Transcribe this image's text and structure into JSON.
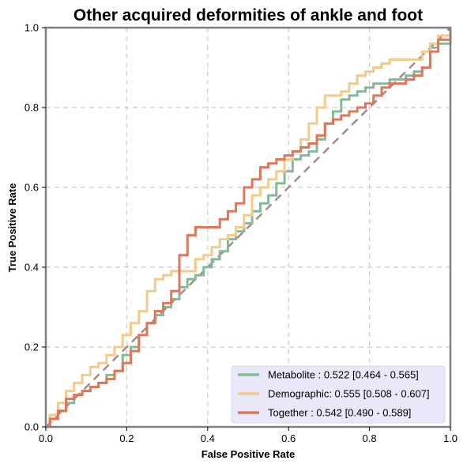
{
  "chart_data": {
    "type": "line",
    "title": "Other acquired deformities of ankle and foot",
    "xlabel": "False Positive Rate",
    "ylabel": "True Positive Rate",
    "xlim": [
      0,
      1
    ],
    "ylim": [
      0,
      1
    ],
    "xticks": [
      "0.0",
      "0.2",
      "0.4",
      "0.6",
      "0.8",
      "1.0"
    ],
    "yticks": [
      "0.0",
      "0.2",
      "0.4",
      "0.6",
      "0.8",
      "1.0"
    ],
    "grid": true,
    "legend_position": "bottom-right",
    "series": [
      {
        "name": "Metabolite",
        "legend_label": "Metabolite     : 0.522 [0.464 - 0.565]",
        "color": "#86b89a",
        "x": [
          0,
          0.01,
          0.03,
          0.05,
          0.07,
          0.09,
          0.11,
          0.13,
          0.15,
          0.17,
          0.19,
          0.21,
          0.23,
          0.25,
          0.27,
          0.29,
          0.31,
          0.33,
          0.35,
          0.37,
          0.39,
          0.41,
          0.43,
          0.45,
          0.47,
          0.49,
          0.51,
          0.53,
          0.55,
          0.57,
          0.59,
          0.61,
          0.63,
          0.65,
          0.67,
          0.69,
          0.71,
          0.73,
          0.75,
          0.77,
          0.79,
          0.81,
          0.83,
          0.85,
          0.87,
          0.89,
          0.91,
          0.93,
          0.95,
          0.97,
          1.0
        ],
        "y": [
          0,
          0.02,
          0.04,
          0.06,
          0.08,
          0.09,
          0.1,
          0.11,
          0.13,
          0.14,
          0.18,
          0.2,
          0.23,
          0.26,
          0.28,
          0.3,
          0.32,
          0.35,
          0.37,
          0.38,
          0.4,
          0.42,
          0.44,
          0.47,
          0.49,
          0.51,
          0.54,
          0.56,
          0.58,
          0.61,
          0.64,
          0.67,
          0.68,
          0.69,
          0.72,
          0.76,
          0.79,
          0.82,
          0.83,
          0.84,
          0.85,
          0.86,
          0.86,
          0.87,
          0.87,
          0.88,
          0.89,
          0.9,
          0.95,
          0.96,
          1.0
        ]
      },
      {
        "name": "Demographic",
        "legend_label": "Demographic: 0.555 [0.508 - 0.607]",
        "color": "#f2cb8b",
        "x": [
          0,
          0.01,
          0.03,
          0.05,
          0.07,
          0.09,
          0.11,
          0.13,
          0.15,
          0.17,
          0.19,
          0.21,
          0.23,
          0.25,
          0.27,
          0.29,
          0.31,
          0.33,
          0.35,
          0.37,
          0.39,
          0.41,
          0.43,
          0.45,
          0.47,
          0.49,
          0.51,
          0.53,
          0.55,
          0.57,
          0.59,
          0.61,
          0.63,
          0.65,
          0.67,
          0.69,
          0.71,
          0.73,
          0.75,
          0.77,
          0.79,
          0.81,
          0.83,
          0.85,
          0.87,
          0.89,
          0.91,
          0.93,
          0.95,
          0.97,
          1.0
        ],
        "y": [
          0,
          0.03,
          0.06,
          0.09,
          0.11,
          0.13,
          0.15,
          0.16,
          0.18,
          0.2,
          0.23,
          0.26,
          0.29,
          0.34,
          0.37,
          0.38,
          0.39,
          0.39,
          0.39,
          0.42,
          0.43,
          0.45,
          0.47,
          0.48,
          0.5,
          0.53,
          0.58,
          0.6,
          0.62,
          0.64,
          0.67,
          0.69,
          0.72,
          0.76,
          0.8,
          0.83,
          0.83,
          0.84,
          0.86,
          0.88,
          0.89,
          0.9,
          0.91,
          0.92,
          0.92,
          0.92,
          0.92,
          0.94,
          0.96,
          0.98,
          1.0
        ]
      },
      {
        "name": "Together",
        "legend_label": "Together       : 0.542 [0.490 - 0.589]",
        "color": "#e07558",
        "x": [
          0,
          0.01,
          0.03,
          0.05,
          0.07,
          0.09,
          0.11,
          0.13,
          0.15,
          0.17,
          0.19,
          0.21,
          0.23,
          0.25,
          0.27,
          0.29,
          0.31,
          0.33,
          0.35,
          0.37,
          0.39,
          0.41,
          0.43,
          0.45,
          0.47,
          0.49,
          0.51,
          0.53,
          0.55,
          0.57,
          0.59,
          0.61,
          0.63,
          0.65,
          0.67,
          0.69,
          0.71,
          0.73,
          0.75,
          0.77,
          0.79,
          0.81,
          0.83,
          0.85,
          0.87,
          0.89,
          0.91,
          0.93,
          0.95,
          0.97,
          1.0
        ],
        "y": [
          0,
          0.02,
          0.04,
          0.07,
          0.08,
          0.09,
          0.1,
          0.11,
          0.12,
          0.14,
          0.16,
          0.19,
          0.23,
          0.26,
          0.29,
          0.31,
          0.34,
          0.43,
          0.48,
          0.5,
          0.5,
          0.5,
          0.52,
          0.54,
          0.56,
          0.6,
          0.62,
          0.65,
          0.66,
          0.67,
          0.68,
          0.69,
          0.7,
          0.71,
          0.73,
          0.76,
          0.77,
          0.78,
          0.79,
          0.8,
          0.81,
          0.83,
          0.85,
          0.86,
          0.86,
          0.87,
          0.88,
          0.9,
          0.94,
          0.97,
          1.0
        ]
      }
    ],
    "diagonal": {
      "x": [
        0,
        1
      ],
      "y": [
        0,
        1
      ],
      "color": "#a88a82"
    },
    "legend_background": "#e8e8f8"
  }
}
